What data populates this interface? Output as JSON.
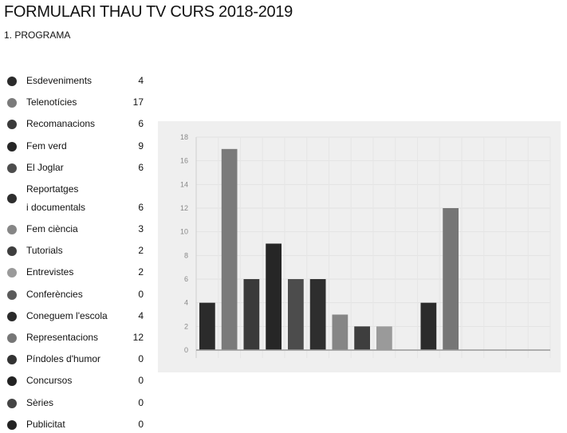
{
  "title": "FORMULARI THAU TV CURS 2018-2019",
  "subtitle": "1. PROGRAMA",
  "chart_data": {
    "type": "bar",
    "categories": [
      "Esdeveniments",
      "Telenotícies",
      "Recomanacions",
      "Fem verd",
      "El Joglar",
      "Reportatges i documentals",
      "Fem ciència",
      "Tutorials",
      "Entrevistes",
      "Conferències",
      "Coneguem l'escola",
      "Representacions",
      "Píndoles d'humor",
      "Concursos",
      "Sèries",
      "Publicitat"
    ],
    "label_lines": [
      [
        "Esdeveniments"
      ],
      [
        "Telenotícies"
      ],
      [
        "Recomanacions"
      ],
      [
        "Fem verd"
      ],
      [
        "El Joglar"
      ],
      [
        "Reportatges",
        "i documentals"
      ],
      [
        "Fem ciència"
      ],
      [
        "Tutorials"
      ],
      [
        "Entrevistes"
      ],
      [
        "Conferències"
      ],
      [
        "Coneguem l'escola"
      ],
      [
        "Representacions"
      ],
      [
        "Píndoles d'humor"
      ],
      [
        "Concursos"
      ],
      [
        "Sèries"
      ],
      [
        "Publicitat"
      ]
    ],
    "values": [
      4,
      17,
      6,
      9,
      6,
      6,
      3,
      2,
      2,
      0,
      4,
      12,
      0,
      0,
      0,
      0
    ],
    "colors": [
      "#2b2b2b",
      "#7a7a7a",
      "#3a3a3a",
      "#262626",
      "#4c4c4c",
      "#2e2e2e",
      "#868686",
      "#3e3e3e",
      "#9a9a9a",
      "#5a5a5a",
      "#2b2b2b",
      "#767676",
      "#333333",
      "#222222",
      "#444444",
      "#222222"
    ],
    "ylim": [
      0,
      18
    ],
    "yticks": [
      "0",
      "2",
      "4",
      "6",
      "8",
      "10",
      "12",
      "14",
      "16",
      "18"
    ],
    "grid": true,
    "legend": "left"
  }
}
